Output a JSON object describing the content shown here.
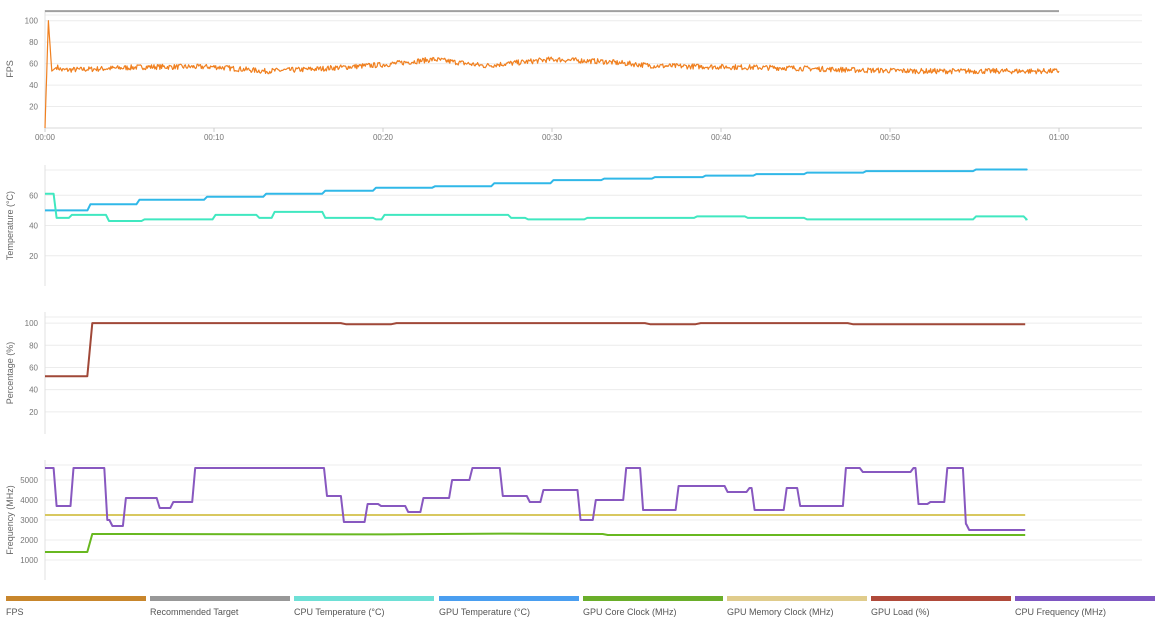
{
  "chart_data": [
    {
      "type": "line",
      "ylabel": "FPS",
      "ylim": [
        0,
        110
      ],
      "yticks": [
        20,
        40,
        60,
        80,
        100
      ],
      "xlim": [
        0,
        65
      ],
      "xticks": [
        {
          "t": 0,
          "label": "00:00"
        },
        {
          "t": 10,
          "label": "00:10"
        },
        {
          "t": 20,
          "label": "00:20"
        },
        {
          "t": 30,
          "label": "00:30"
        },
        {
          "t": 40,
          "label": "00:40"
        },
        {
          "t": 50,
          "label": "00:50"
        },
        {
          "t": 60,
          "label": "01:00"
        }
      ],
      "grid": true,
      "series": [
        {
          "name": "Recommended Target",
          "color": "#a0a0a0",
          "x": [
            0,
            60
          ],
          "y": [
            109,
            109
          ]
        },
        {
          "name": "FPS",
          "color": "#f08020",
          "x": [
            0,
            0.2,
            0.4,
            0.7,
            1,
            3,
            6,
            10,
            13,
            16,
            20,
            23,
            26,
            30,
            33,
            36,
            40,
            44,
            48,
            52,
            56,
            60
          ],
          "y": [
            0,
            100,
            53,
            57,
            54,
            55,
            57,
            57,
            53,
            55,
            59,
            64,
            58,
            64,
            62,
            58,
            57,
            56,
            54,
            53,
            53,
            53
          ],
          "noise": 2.5
        }
      ]
    },
    {
      "type": "line",
      "ylabel": "Temperature (°C)",
      "ylim": [
        0,
        80
      ],
      "yticks": [
        20,
        40,
        60
      ],
      "xlim": [
        0,
        65
      ],
      "grid": true,
      "series": [
        {
          "name": "GPU Temperature (°C)",
          "color": "#30b8e8",
          "step": true,
          "x": [
            0,
            2.6,
            5.5,
            9.5,
            13,
            16.5,
            19.5,
            23,
            26.5,
            30,
            33,
            36,
            39,
            42,
            45,
            48.5,
            51.5,
            55,
            58
          ],
          "y": [
            50,
            54,
            57,
            59,
            61,
            63,
            65,
            66,
            68,
            70,
            71,
            72,
            73,
            74,
            75,
            76,
            76,
            77,
            77
          ]
        },
        {
          "name": "CPU Temperature (°C)",
          "color": "#40e8c0",
          "step": true,
          "x": [
            0,
            0.6,
            1.5,
            3.7,
            5.8,
            9,
            10,
            12.6,
            13.5,
            16.5,
            19.5,
            20,
            27.5,
            28.5,
            32,
            38.5,
            41.5,
            45,
            50,
            54,
            55,
            58
          ],
          "y": [
            61,
            45,
            47,
            43,
            44,
            44,
            47,
            45,
            49,
            45,
            44,
            47,
            45,
            44,
            45,
            46,
            45,
            44,
            44,
            44,
            46,
            44
          ]
        }
      ]
    },
    {
      "type": "line",
      "ylabel": "Percentage (%)",
      "ylim": [
        0,
        110
      ],
      "yticks": [
        20,
        40,
        60,
        80,
        100
      ],
      "xlim": [
        0,
        65
      ],
      "grid": true,
      "series": [
        {
          "name": "GPU Load (%)",
          "color": "#a04838",
          "x": [
            0,
            2.5,
            2.8,
            17.5,
            17.8,
            20.5,
            20.8,
            35.5,
            35.8,
            38.5,
            38.8,
            47.5,
            47.8,
            58
          ],
          "y": [
            52,
            52,
            100,
            100,
            99,
            99,
            100,
            100,
            99,
            99,
            100,
            100,
            99,
            99
          ]
        }
      ]
    },
    {
      "type": "line",
      "ylabel": "Frequency (MHz)",
      "ylim": [
        0,
        6000
      ],
      "yticks": [
        1000,
        2000,
        3000,
        4000,
        5000
      ],
      "xlim": [
        0,
        65
      ],
      "grid": true,
      "series": [
        {
          "name": "GPU Memory Clock (MHz)",
          "color": "#d8c860",
          "x": [
            0,
            58
          ],
          "y": [
            3250,
            3250
          ]
        },
        {
          "name": "GPU Core Clock (MHz)",
          "color": "#68b820",
          "x": [
            0,
            2.5,
            2.8,
            20,
            27,
            33,
            33.3,
            45,
            58
          ],
          "y": [
            1400,
            1400,
            2300,
            2280,
            2320,
            2300,
            2250,
            2250,
            2250
          ]
        },
        {
          "name": "CPU Frequency (MHz)",
          "color": "#8858c0",
          "step": true,
          "x": [
            0,
            0.6,
            1.6,
            3.6,
            3.9,
            4.7,
            6.7,
            7.5,
            8.8,
            16.6,
            17.6,
            19,
            19.8,
            21.4,
            22.3,
            24,
            25.2,
            27,
            28.6,
            29.4,
            31.6,
            32.5,
            34.3,
            35.3,
            37.4,
            40.3,
            41.6,
            41.9,
            43.8,
            44.6,
            47.3,
            48.3,
            51.3,
            51.6,
            52.3,
            53.3,
            54.4,
            54.6
          ],
          "y": [
            5600,
            3700,
            5600,
            3000,
            2700,
            4100,
            3600,
            3900,
            5600,
            4200,
            2900,
            3800,
            3700,
            3400,
            4100,
            5000,
            5600,
            4200,
            3900,
            4500,
            3000,
            4000,
            5600,
            3500,
            4700,
            4400,
            4600,
            3500,
            4600,
            3700,
            5600,
            5400,
            5600,
            3800,
            3900,
            5600,
            2800,
            2500
          ]
        }
      ]
    }
  ],
  "legend": [
    {
      "label": "FPS",
      "color": "#c8862c"
    },
    {
      "label": "Recommended Target",
      "color": "#989898"
    },
    {
      "label": "CPU Temperature (°C)",
      "color": "#6ee0d6"
    },
    {
      "label": "GPU Temperature (°C)",
      "color": "#4a9ef0"
    },
    {
      "label": "GPU Core Clock (MHz)",
      "color": "#6aae2a"
    },
    {
      "label": "GPU Memory Clock (MHz)",
      "color": "#e0cc8c"
    },
    {
      "label": "GPU Load (%)",
      "color": "#b04a3a"
    },
    {
      "label": "CPU Frequency (MHz)",
      "color": "#7e56c2"
    }
  ]
}
